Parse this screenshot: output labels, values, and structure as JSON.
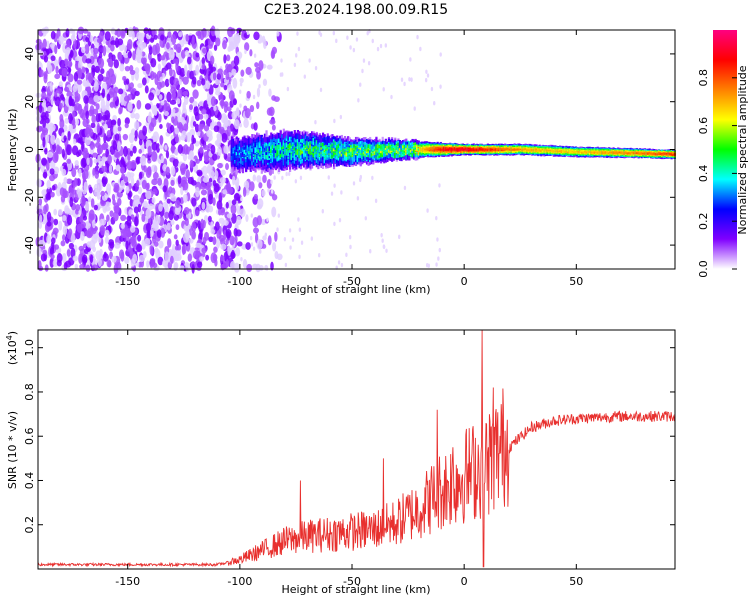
{
  "title": "C2E3.2024.198.00.09.R15",
  "chart_data": [
    {
      "type": "heatmap",
      "title": "C2E3.2024.198.00.09.R15",
      "xlabel": "Height of straight line (km)",
      "ylabel": "Frequency (Hz)",
      "xlim": [
        -190,
        94
      ],
      "ylim": [
        -50,
        50
      ],
      "xticks": [
        -150,
        -100,
        -50,
        0,
        50
      ],
      "yticks": [
        -40,
        -20,
        0,
        20,
        40
      ],
      "colorbar": {
        "label": "Normalized spectral amplitude",
        "range": [
          0,
          1
        ],
        "ticks": [
          0.0,
          0.2,
          0.4,
          0.6,
          0.8
        ],
        "colormap": [
          "#ffffff",
          "#8000ff",
          "#0000ff",
          "#00ffff",
          "#00ff00",
          "#ffff00",
          "#ff8000",
          "#ff0000",
          "#ff0080"
        ]
      },
      "description_profile": {
        "noise_region_x": [
          -190,
          -100
        ],
        "signal_center_hz": [
          {
            "x": -100,
            "f": -2
          },
          {
            "x": -75,
            "f": 0
          },
          {
            "x": -50,
            "f": -1
          },
          {
            "x": -25,
            "f": 0
          },
          {
            "x": 0,
            "f": 0
          },
          {
            "x": 25,
            "f": 0
          },
          {
            "x": 50,
            "f": -1
          },
          {
            "x": 75,
            "f": -1.5
          },
          {
            "x": 94,
            "f": -2
          }
        ],
        "signal_halfwidth_hz": [
          {
            "x": -100,
            "w": 8
          },
          {
            "x": -80,
            "w": 9
          },
          {
            "x": -50,
            "w": 6
          },
          {
            "x": -25,
            "w": 4
          },
          {
            "x": 0,
            "w": 2.5
          },
          {
            "x": 25,
            "w": 2.5
          },
          {
            "x": 94,
            "w": 2
          }
        ],
        "peak_amplitude": [
          {
            "x": -100,
            "a": 0.35
          },
          {
            "x": -75,
            "a": 0.5
          },
          {
            "x": -50,
            "a": 0.55
          },
          {
            "x": -25,
            "a": 0.6
          },
          {
            "x": -10,
            "a": 0.9
          },
          {
            "x": 0,
            "a": 0.95
          },
          {
            "x": 25,
            "a": 0.75
          },
          {
            "x": 50,
            "a": 0.7
          },
          {
            "x": 94,
            "a": 0.85
          }
        ]
      }
    },
    {
      "type": "line",
      "xlabel": "Height of straight line (km)",
      "ylabel": "SNR (10 * v/v)",
      "y_multiplier": "(x10",
      "y_multiplier_exp": "4",
      "xlim": [
        -190,
        94
      ],
      "ylim": [
        0,
        1.08
      ],
      "xticks": [
        -150,
        -100,
        -50,
        0,
        50
      ],
      "yticks": [
        0.2,
        0.4,
        0.6,
        0.8,
        1.0
      ],
      "series": [
        {
          "color": "#e8302e",
          "envelope": [
            {
              "x": -190,
              "y": 0.02
            },
            {
              "x": -150,
              "y": 0.02
            },
            {
              "x": -110,
              "y": 0.02
            },
            {
              "x": -100,
              "y": 0.04
            },
            {
              "x": -90,
              "y": 0.08
            },
            {
              "x": -80,
              "y": 0.12
            },
            {
              "x": -70,
              "y": 0.14
            },
            {
              "x": -60,
              "y": 0.15
            },
            {
              "x": -50,
              "y": 0.16
            },
            {
              "x": -40,
              "y": 0.17
            },
            {
              "x": -30,
              "y": 0.2
            },
            {
              "x": -20,
              "y": 0.26
            },
            {
              "x": -10,
              "y": 0.34
            },
            {
              "x": 0,
              "y": 0.4
            },
            {
              "x": 10,
              "y": 0.45
            },
            {
              "x": 20,
              "y": 0.55
            },
            {
              "x": 30,
              "y": 0.64
            },
            {
              "x": 40,
              "y": 0.67
            },
            {
              "x": 50,
              "y": 0.68
            },
            {
              "x": 70,
              "y": 0.69
            },
            {
              "x": 94,
              "y": 0.69
            }
          ],
          "spikes": [
            {
              "x": -73,
              "y": 0.4
            },
            {
              "x": -36,
              "y": 0.5
            },
            {
              "x": -12,
              "y": 0.72
            },
            {
              "x": -5,
              "y": 0.55
            },
            {
              "x": 8,
              "y": 1.08
            },
            {
              "x": 8.6,
              "y": 0.01
            },
            {
              "x": 13,
              "y": 0.82
            }
          ]
        }
      ]
    }
  ]
}
